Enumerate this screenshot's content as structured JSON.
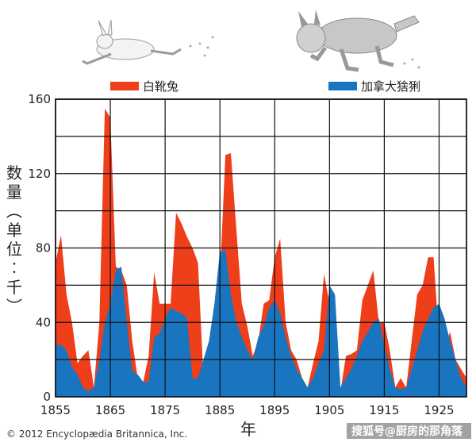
{
  "chart_data": {
    "type": "area",
    "ylabel": "数量（单位：千）",
    "xlabel": "年",
    "xlim": [
      1855,
      1930
    ],
    "ylim": [
      0,
      160
    ],
    "xticks": [
      1855,
      1865,
      1875,
      1885,
      1895,
      1905,
      1915,
      1925
    ],
    "yticks": [
      0,
      40,
      80,
      120,
      160
    ],
    "grid": true,
    "legend_position": "top",
    "series": [
      {
        "name": "白靴兔",
        "color": "#ef3e1a",
        "x": [
          1855,
          1856,
          1857,
          1858,
          1859,
          1860,
          1861,
          1862,
          1863,
          1864,
          1865,
          1866,
          1867,
          1868,
          1869,
          1870,
          1871,
          1872,
          1873,
          1874,
          1875,
          1876,
          1877,
          1878,
          1879,
          1880,
          1881,
          1882,
          1883,
          1884,
          1885,
          1886,
          1887,
          1888,
          1889,
          1890,
          1891,
          1892,
          1893,
          1894,
          1895,
          1896,
          1897,
          1898,
          1899,
          1900,
          1901,
          1902,
          1903,
          1904,
          1905,
          1906,
          1907,
          1908,
          1909,
          1910,
          1911,
          1912,
          1913,
          1914,
          1915,
          1916,
          1917,
          1918,
          1919,
          1920,
          1921,
          1922,
          1923,
          1924,
          1925,
          1926,
          1927,
          1928,
          1929,
          1930
        ],
        "values": [
          72,
          87,
          55,
          40,
          18,
          22,
          25,
          5,
          40,
          155,
          150,
          70,
          68,
          60,
          30,
          10,
          8,
          22,
          67,
          50,
          50,
          50,
          99,
          93,
          86,
          80,
          72,
          10,
          10,
          22,
          64,
          130,
          131,
          90,
          50,
          38,
          22,
          30,
          50,
          52,
          75,
          85,
          40,
          25,
          20,
          10,
          5,
          18,
          30,
          66,
          50,
          42,
          3,
          22,
          23,
          25,
          52,
          60,
          68,
          40,
          40,
          25,
          5,
          10,
          5,
          30,
          55,
          60,
          75,
          75,
          30,
          25,
          35,
          20,
          15,
          10
        ]
      },
      {
        "name": "加拿大猞猁",
        "color": "#1a75c0",
        "x": [
          1855,
          1856,
          1857,
          1858,
          1859,
          1860,
          1861,
          1862,
          1863,
          1864,
          1865,
          1866,
          1867,
          1868,
          1869,
          1870,
          1871,
          1872,
          1873,
          1874,
          1875,
          1876,
          1877,
          1878,
          1879,
          1880,
          1881,
          1882,
          1883,
          1884,
          1885,
          1886,
          1887,
          1888,
          1889,
          1890,
          1891,
          1892,
          1893,
          1894,
          1895,
          1896,
          1897,
          1898,
          1899,
          1900,
          1901,
          1902,
          1903,
          1904,
          1905,
          1906,
          1907,
          1908,
          1909,
          1910,
          1911,
          1912,
          1913,
          1914,
          1915,
          1916,
          1917,
          1918,
          1919,
          1920,
          1921,
          1922,
          1923,
          1924,
          1925,
          1926,
          1927,
          1928,
          1929,
          1930
        ],
        "values": [
          28,
          28,
          25,
          16,
          12,
          5,
          3,
          5,
          20,
          40,
          50,
          68,
          70,
          40,
          14,
          12,
          8,
          8,
          32,
          34,
          42,
          48,
          46,
          45,
          42,
          10,
          10,
          20,
          30,
          50,
          78,
          79,
          55,
          40,
          32,
          25,
          20,
          32,
          38,
          48,
          52,
          45,
          32,
          22,
          15,
          10,
          5,
          10,
          18,
          25,
          60,
          55,
          5,
          10,
          15,
          22,
          30,
          35,
          40,
          42,
          28,
          15,
          5,
          4,
          5,
          15,
          25,
          35,
          42,
          48,
          50,
          42,
          30,
          20,
          10,
          5
        ]
      }
    ]
  },
  "credit": "© 2012 Encyclopædia Britannica, Inc.",
  "watermark": "搜狐号@厨房的那角落"
}
